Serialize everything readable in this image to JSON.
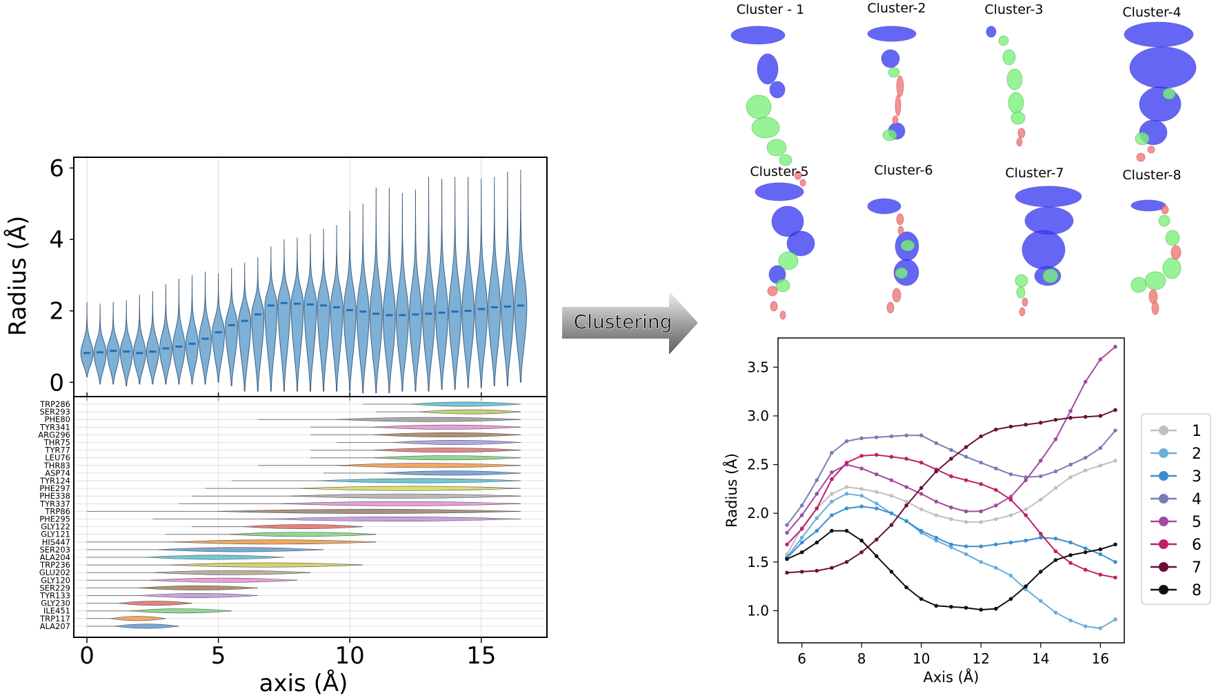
{
  "arrow_label": "Clustering",
  "cluster_titles": [
    "Cluster - 1",
    "Cluster-2",
    "Cluster-3",
    "Cluster-4",
    "Cluster-5",
    "Cluster-6",
    "Cluster-7",
    "Cluster-8"
  ],
  "colors": {
    "violin_fill": "#7fb0d6",
    "violin_stroke": "#3d5f80",
    "median": "#1f6fb5",
    "tunnel_blue": "#3b3bf2",
    "tunnel_green": "#7cf07c",
    "tunnel_red": "#f08080"
  },
  "chart_data": [
    {
      "type": "violin",
      "xlabel": "axis (Å)",
      "ylabel": "Radius (Å)",
      "xlim": [
        -0.5,
        17.5
      ],
      "ylim": [
        -0.4,
        6.3
      ],
      "xticks": [
        0,
        5,
        10,
        15
      ],
      "yticks": [
        0,
        2,
        4,
        6
      ],
      "grid": "vertical",
      "positions": [
        0.0,
        0.5,
        1.0,
        1.5,
        2.0,
        2.5,
        3.0,
        3.5,
        4.0,
        4.5,
        5.0,
        5.5,
        6.0,
        6.5,
        7.0,
        7.5,
        8.0,
        8.5,
        9.0,
        9.5,
        10.0,
        10.5,
        11.0,
        11.5,
        12.0,
        12.5,
        13.0,
        13.5,
        14.0,
        14.5,
        15.0,
        15.5,
        16.0,
        16.5
      ],
      "medians": [
        0.82,
        0.84,
        0.88,
        0.86,
        0.82,
        0.86,
        0.95,
        1.0,
        1.08,
        1.22,
        1.4,
        1.6,
        1.72,
        1.9,
        2.15,
        2.22,
        2.2,
        2.18,
        2.15,
        2.1,
        2.02,
        1.98,
        1.92,
        1.88,
        1.88,
        1.9,
        1.92,
        1.95,
        1.98,
        2.0,
        2.05,
        2.1,
        2.12,
        2.15
      ],
      "max": [
        2.25,
        2.2,
        2.25,
        2.3,
        2.45,
        2.55,
        2.75,
        2.9,
        3.0,
        3.1,
        3.05,
        3.2,
        3.35,
        3.5,
        3.8,
        4.0,
        4.05,
        4.15,
        4.3,
        4.4,
        4.8,
        5.0,
        5.45,
        5.45,
        5.3,
        5.4,
        5.75,
        5.7,
        5.75,
        5.75,
        5.7,
        5.75,
        5.9,
        5.95
      ],
      "min": [
        0.15,
        -0.05,
        -0.05,
        -0.1,
        -0.05,
        -0.05,
        -0.05,
        -0.05,
        -0.05,
        -0.05,
        0.0,
        -0.1,
        -0.25,
        -0.25,
        -0.25,
        -0.25,
        -0.25,
        -0.25,
        -0.25,
        -0.25,
        -0.25,
        -0.3,
        -0.3,
        -0.3,
        -0.25,
        -0.25,
        -0.25,
        -0.2,
        -0.2,
        -0.15,
        -0.15,
        -0.1,
        -0.1,
        0.0
      ]
    },
    {
      "type": "violin",
      "xlim": [
        -0.5,
        17.5
      ],
      "residues": [
        "TRP286",
        "SER293",
        "PHE80",
        "TYR341",
        "ARG296",
        "THR75",
        "TYR77",
        "LEU76",
        "THR83",
        "ASP74",
        "TYR124",
        "PHE297",
        "PHE338",
        "TYR337",
        "TRP86",
        "PHE295",
        "GLY122",
        "GLY121",
        "HIS447",
        "SER203",
        "ALA204",
        "TRP236",
        "GLU202",
        "GLY120",
        "SER229",
        "TYR133",
        "GLY230",
        "ILE451",
        "TRP117",
        "ALA207"
      ],
      "ranges": [
        [
          10.5,
          16.5
        ],
        [
          11.0,
          16.5
        ],
        [
          6.5,
          16.5
        ],
        [
          8.5,
          16.5
        ],
        [
          8.5,
          16.5
        ],
        [
          9.5,
          16.5
        ],
        [
          8.5,
          16.5
        ],
        [
          8.5,
          16.5
        ],
        [
          6.5,
          16.5
        ],
        [
          9.0,
          16.5
        ],
        [
          5.5,
          16.5
        ],
        [
          4.5,
          16.5
        ],
        [
          4.0,
          16.5
        ],
        [
          3.5,
          16.5
        ],
        [
          0.0,
          16.5
        ],
        [
          2.5,
          16.5
        ],
        [
          4.0,
          10.5
        ],
        [
          3.0,
          11.0
        ],
        [
          0.0,
          11.0
        ],
        [
          0.0,
          9.0
        ],
        [
          0.0,
          7.5
        ],
        [
          0.0,
          10.5
        ],
        [
          0.0,
          8.5
        ],
        [
          0.0,
          8.0
        ],
        [
          0.0,
          6.5
        ],
        [
          0.0,
          6.5
        ],
        [
          0.0,
          4.0
        ],
        [
          0.0,
          5.5
        ],
        [
          0.0,
          3.0
        ],
        [
          0.0,
          3.5
        ]
      ],
      "colors": [
        "#6fc8d8",
        "#c8d070",
        "#a8a8a8",
        "#e6a0d8",
        "#b09070",
        "#b0a8e0",
        "#e08888",
        "#90d890",
        "#f0a860",
        "#7aa8d8",
        "#6fc8d8",
        "#d8e070",
        "#b8b8b8",
        "#e6a0d8",
        "#a89080",
        "#c8a0e0",
        "#e88080",
        "#90d890",
        "#f0a860",
        "#7aa8d8",
        "#6fc8d8",
        "#d8d070",
        "#b8b0a0",
        "#e6a0d8",
        "#b09070",
        "#c8a0e0",
        "#e88080",
        "#90d890",
        "#f0a860",
        "#7aa8d8"
      ]
    },
    {
      "type": "line",
      "xlabel": "Axis (Å)",
      "ylabel": "Radius (Å)",
      "xlim": [
        5.2,
        16.8
      ],
      "ylim": [
        0.67,
        3.8
      ],
      "xticks": [
        6,
        8,
        10,
        12,
        14,
        16
      ],
      "yticks": [
        1.0,
        1.5,
        2.0,
        2.5,
        3.0,
        3.5
      ],
      "legend": "right-outside",
      "x": [
        5.5,
        6.0,
        6.5,
        7.0,
        7.5,
        8.0,
        8.5,
        9.0,
        9.5,
        10.0,
        10.5,
        11.0,
        11.5,
        12.0,
        12.5,
        13.0,
        13.5,
        14.0,
        14.5,
        15.0,
        15.5,
        16.0,
        16.5
      ],
      "series": [
        {
          "name": "1",
          "color": "#c0c0c0",
          "values": [
            1.58,
            1.85,
            2.05,
            2.2,
            2.27,
            2.25,
            2.22,
            2.18,
            2.12,
            2.04,
            1.98,
            1.94,
            1.91,
            1.91,
            1.94,
            1.98,
            2.04,
            2.14,
            2.26,
            2.37,
            2.44,
            2.49,
            2.54
          ]
        },
        {
          "name": "2",
          "color": "#6baed6",
          "values": [
            1.55,
            1.75,
            1.95,
            2.12,
            2.2,
            2.18,
            2.1,
            2.0,
            1.92,
            1.8,
            1.72,
            1.65,
            1.58,
            1.5,
            1.44,
            1.36,
            1.22,
            1.1,
            0.98,
            0.9,
            0.84,
            0.82,
            0.91
          ]
        },
        {
          "name": "3",
          "color": "#3a8fd0",
          "values": [
            1.54,
            1.7,
            1.82,
            1.98,
            2.05,
            2.07,
            2.05,
            2.0,
            1.92,
            1.82,
            1.75,
            1.68,
            1.66,
            1.66,
            1.68,
            1.7,
            1.72,
            1.75,
            1.74,
            1.7,
            1.64,
            1.58,
            1.5
          ]
        },
        {
          "name": "4",
          "color": "#7b7bb8",
          "values": [
            1.88,
            2.08,
            2.34,
            2.62,
            2.74,
            2.77,
            2.78,
            2.79,
            2.8,
            2.8,
            2.72,
            2.65,
            2.58,
            2.52,
            2.46,
            2.4,
            2.37,
            2.38,
            2.43,
            2.5,
            2.57,
            2.67,
            2.85
          ]
        },
        {
          "name": "5",
          "color": "#a04aa0",
          "values": [
            1.8,
            1.98,
            2.2,
            2.42,
            2.5,
            2.46,
            2.4,
            2.34,
            2.27,
            2.2,
            2.12,
            2.06,
            2.02,
            2.02,
            2.08,
            2.17,
            2.34,
            2.54,
            2.76,
            3.05,
            3.35,
            3.58,
            3.71
          ]
        },
        {
          "name": "6",
          "color": "#c0206a",
          "values": [
            1.68,
            1.84,
            2.05,
            2.35,
            2.52,
            2.59,
            2.6,
            2.58,
            2.56,
            2.52,
            2.45,
            2.38,
            2.34,
            2.3,
            2.24,
            2.14,
            1.98,
            1.79,
            1.61,
            1.49,
            1.42,
            1.37,
            1.34
          ]
        },
        {
          "name": "7",
          "color": "#6a0f35",
          "values": [
            1.39,
            1.4,
            1.41,
            1.44,
            1.5,
            1.6,
            1.73,
            1.88,
            2.08,
            2.26,
            2.43,
            2.56,
            2.68,
            2.79,
            2.86,
            2.89,
            2.91,
            2.93,
            2.96,
            2.98,
            2.99,
            3.0,
            3.06
          ]
        },
        {
          "name": "8",
          "color": "#111111",
          "values": [
            1.53,
            1.6,
            1.7,
            1.82,
            1.82,
            1.72,
            1.56,
            1.4,
            1.24,
            1.12,
            1.05,
            1.04,
            1.03,
            1.01,
            1.02,
            1.12,
            1.25,
            1.4,
            1.52,
            1.57,
            1.6,
            1.63,
            1.68
          ]
        }
      ]
    }
  ]
}
